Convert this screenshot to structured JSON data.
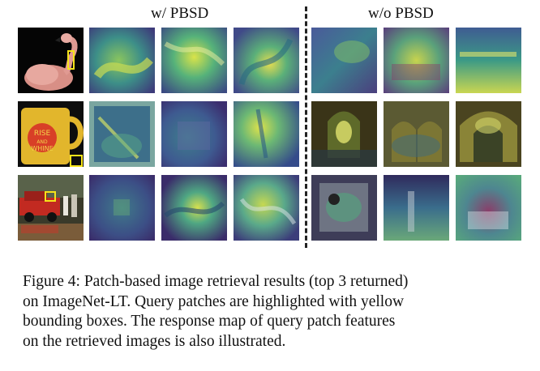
{
  "figure": {
    "header_left": "w/ PBSD",
    "header_right": "w/o PBSD",
    "rows": [
      {
        "query": {
          "subject": "flamingo",
          "overlay_text": ""
        },
        "with_pbsd": [
          "response-map-flamingo-1",
          "response-map-flamingo-2",
          "response-map-flamingo-3"
        ],
        "without_pbsd": [
          "response-map-flamingo-4",
          "response-map-flamingo-5",
          "response-map-flamingo-6"
        ]
      },
      {
        "query": {
          "subject": "mug",
          "overlay_text": "RISE AND WHINE"
        },
        "with_pbsd": [
          "response-map-mug-1",
          "response-map-mug-2",
          "response-map-mug-3"
        ],
        "without_pbsd": [
          "response-map-mug-4",
          "response-map-mug-5",
          "response-map-mug-6"
        ]
      },
      {
        "query": {
          "subject": "street-car",
          "overlay_text": ""
        },
        "with_pbsd": [
          "response-map-car-1",
          "response-map-car-2",
          "response-map-car-3"
        ],
        "without_pbsd": [
          "response-map-car-4",
          "response-map-car-5",
          "response-map-car-6"
        ]
      }
    ],
    "colors": {
      "query_box": "#f5e31a",
      "viridis_dark": "#3b2a6b",
      "viridis_mid": "#2a8f8a",
      "viridis_light": "#d9e34a"
    }
  },
  "caption": {
    "lines": [
      "Figure 4: Patch-based image retrieval results (top 3 returned)",
      "on ImageNet-LT. Query patches are highlighted with yellow",
      "bounding boxes. The response map of query patch features",
      "on the retrieved images is also illustrated."
    ]
  }
}
